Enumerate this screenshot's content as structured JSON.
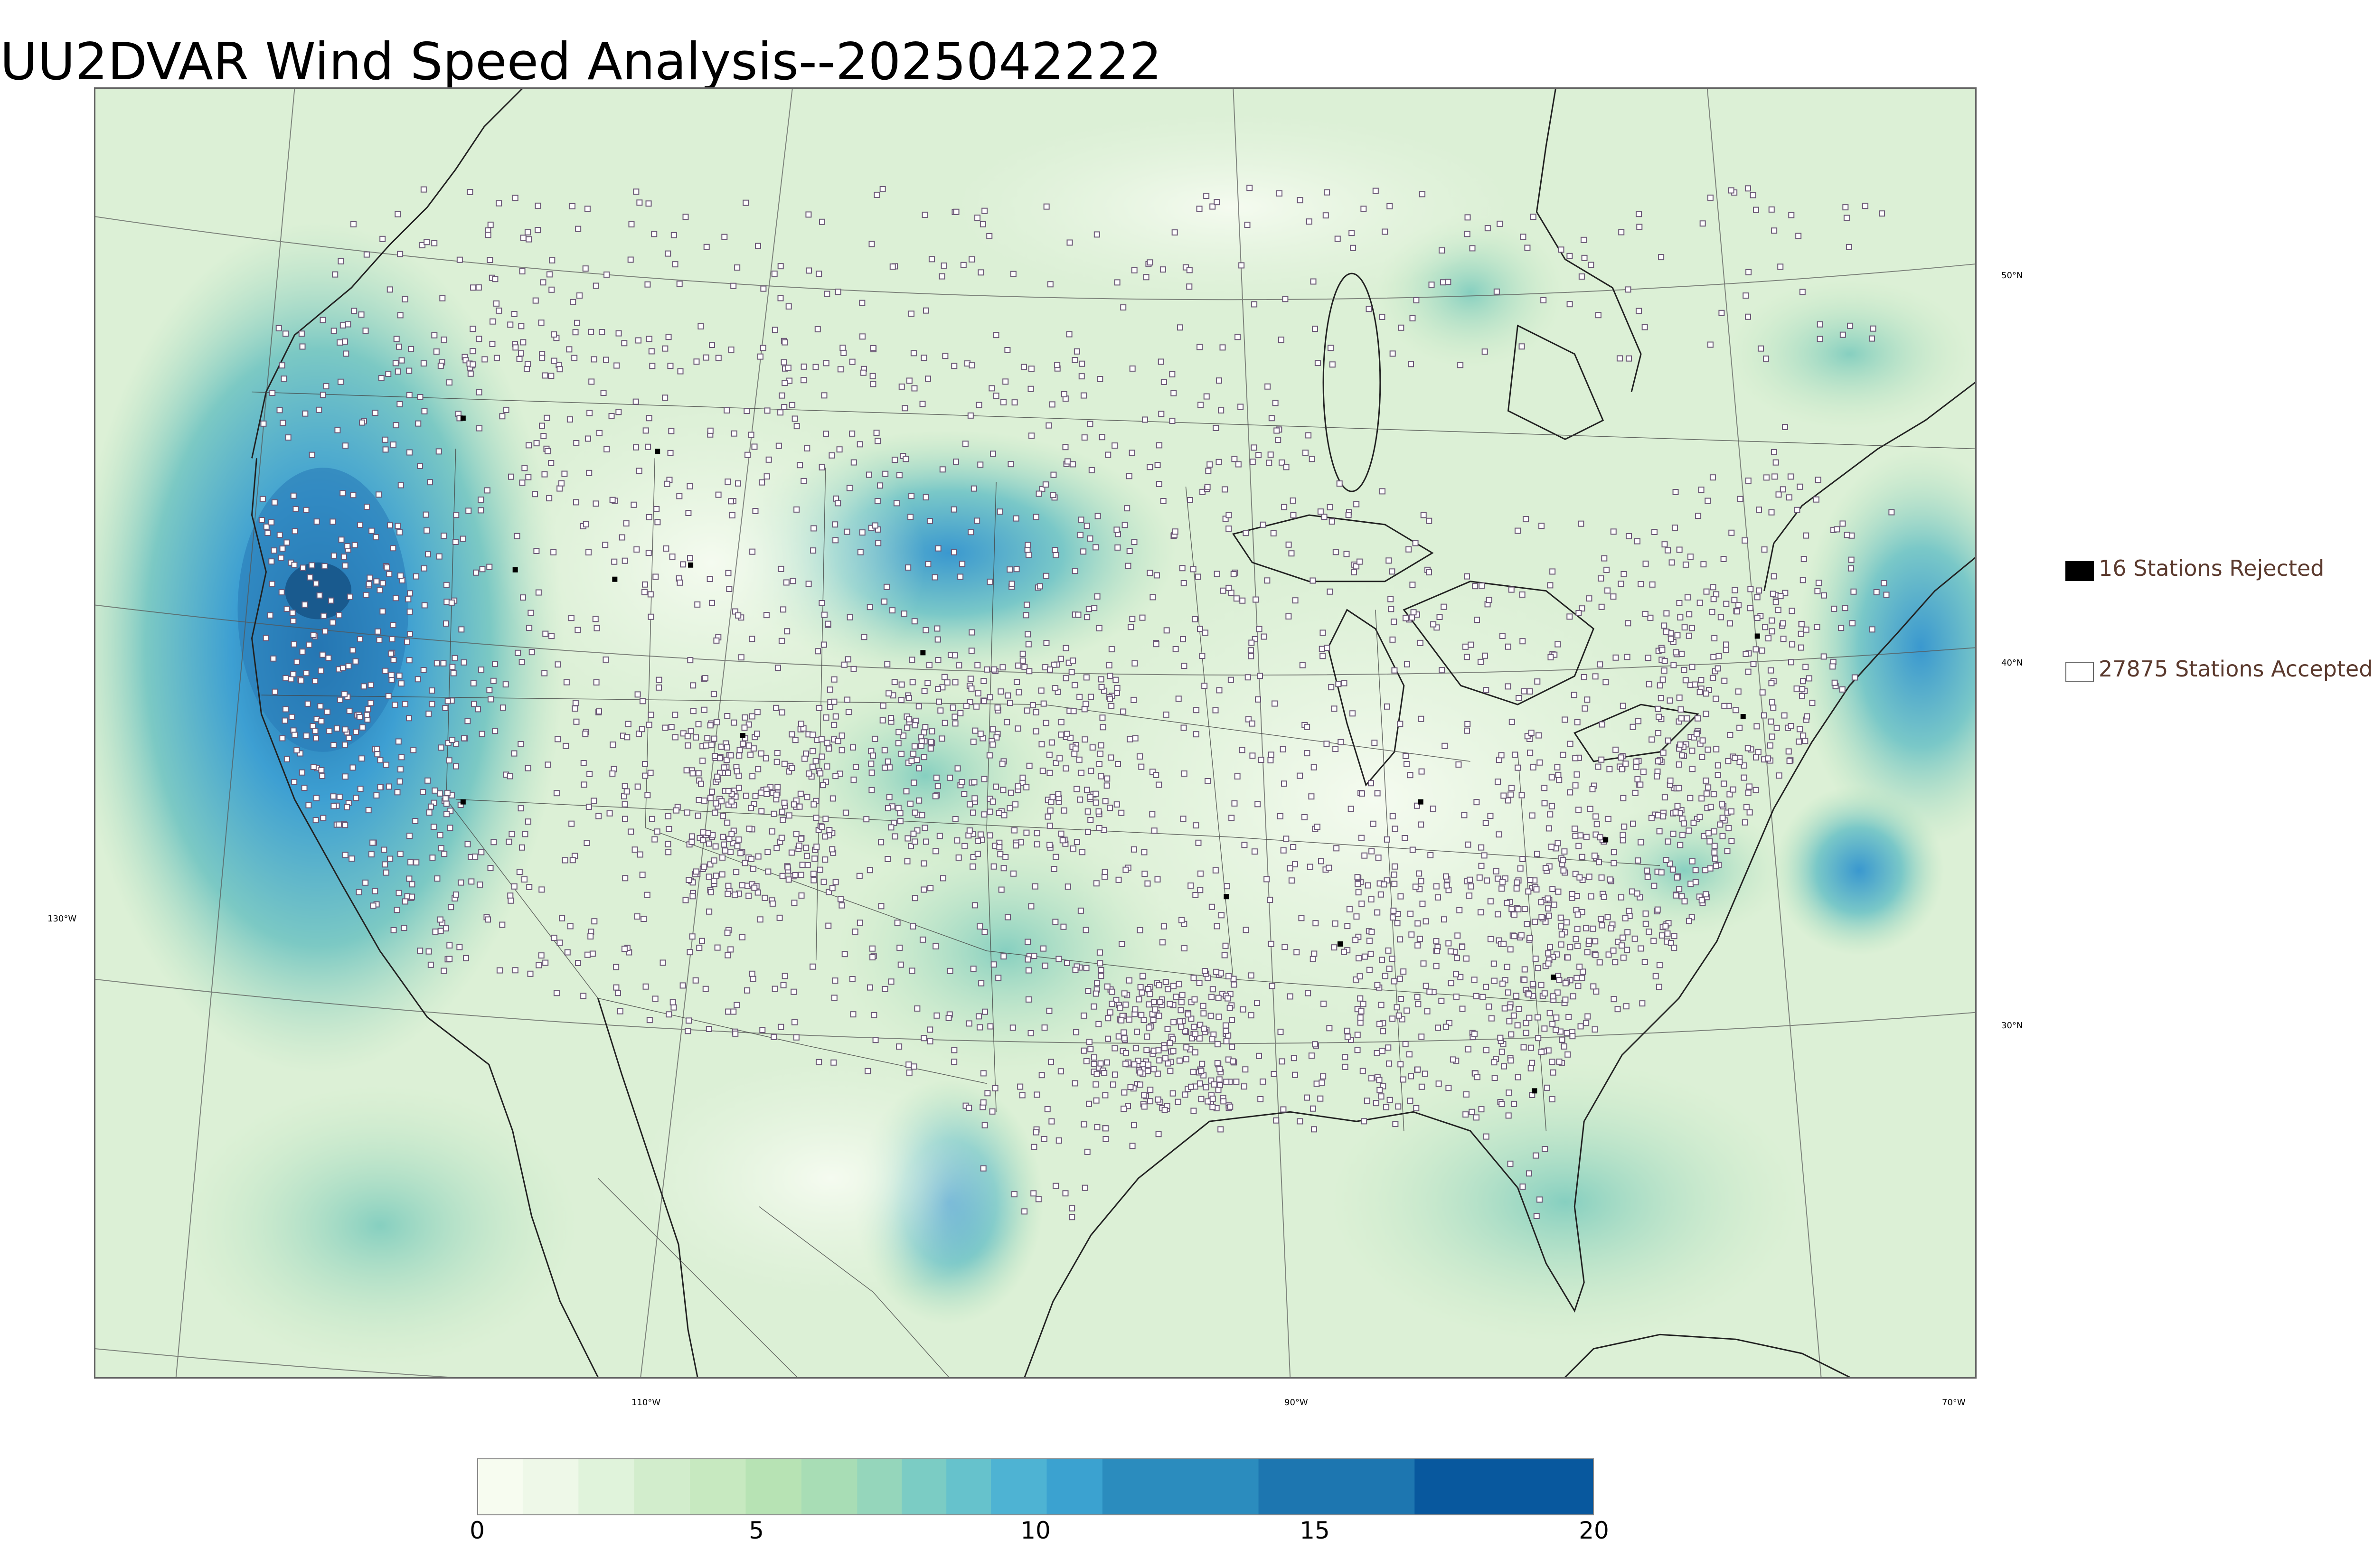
{
  "title": "UU2DVAR Wind Speed Analysis--2025042222",
  "map": {
    "latitude_labels": [
      "50°N",
      "40°N",
      "30°N"
    ],
    "longitude_labels": [
      "130°W",
      "110°W",
      "90°W",
      "70°W"
    ]
  },
  "legend": {
    "rejected": {
      "label": "16 Stations Rejected",
      "color": "#000000"
    },
    "accepted": {
      "label": "27875 Stations Accepted",
      "color": "#ffffff"
    }
  },
  "colorbar": {
    "min": 0,
    "max": 20,
    "ticks": [
      "0",
      "5",
      "10",
      "15",
      "20"
    ],
    "colors": [
      "#f7fcf0",
      "#eef8e8",
      "#e0f3db",
      "#d2edcc",
      "#c7e9c0",
      "#b7e3b4",
      "#a8ddb5",
      "#95d6bb",
      "#7bccc4",
      "#66c2cc",
      "#4eb3d3",
      "#3ba2d0",
      "#2b8cbe",
      "#1d76b0",
      "#08589e"
    ]
  }
}
